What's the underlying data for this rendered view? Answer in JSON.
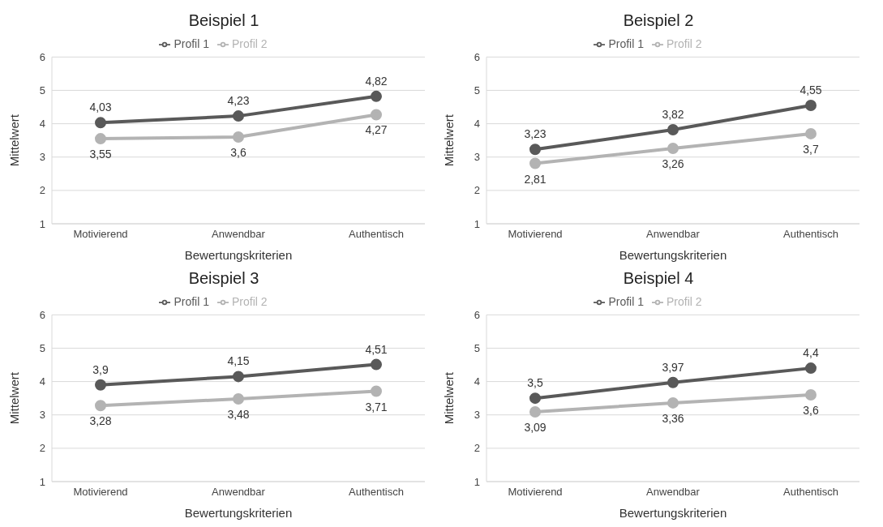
{
  "chart_data": [
    {
      "type": "line",
      "title": "Beispiel 1",
      "xlabel": "Bewertungskriterien",
      "ylabel": "Mittelwert",
      "categories": [
        "Motivierend",
        "Anwendbar",
        "Authentisch"
      ],
      "ylim": [
        1,
        6
      ],
      "yticks": [
        1,
        2,
        3,
        4,
        5,
        6
      ],
      "grid": "y",
      "legend": "top",
      "marker": "circle",
      "line_style": "solid",
      "series": [
        {
          "name": "Profil 1",
          "color": "#595959",
          "values": [
            4.03,
            4.23,
            4.82
          ],
          "value_labels": [
            "4,03",
            "4,23",
            "4,82"
          ]
        },
        {
          "name": "Profil 2",
          "color": "#b3b3b3",
          "values": [
            3.55,
            3.6,
            4.27
          ],
          "value_labels": [
            "3,55",
            "3,6",
            "4,27"
          ]
        }
      ]
    },
    {
      "type": "line",
      "title": "Beispiel 2",
      "xlabel": "Bewertungskriterien",
      "ylabel": "Mittelwert",
      "categories": [
        "Motivierend",
        "Anwendbar",
        "Authentisch"
      ],
      "ylim": [
        1,
        6
      ],
      "yticks": [
        1,
        2,
        3,
        4,
        5,
        6
      ],
      "grid": "y",
      "legend": "top",
      "marker": "circle",
      "line_style": "solid",
      "series": [
        {
          "name": "Profil 1",
          "color": "#595959",
          "values": [
            3.23,
            3.82,
            4.55
          ],
          "value_labels": [
            "3,23",
            "3,82",
            "4,55"
          ]
        },
        {
          "name": "Profil 2",
          "color": "#b3b3b3",
          "values": [
            2.81,
            3.26,
            3.7
          ],
          "value_labels": [
            "2,81",
            "3,26",
            "3,7"
          ]
        }
      ]
    },
    {
      "type": "line",
      "title": "Beispiel 3",
      "xlabel": "Bewertungskriterien",
      "ylabel": "Mittelwert",
      "categories": [
        "Motivierend",
        "Anwendbar",
        "Authentisch"
      ],
      "ylim": [
        1,
        6
      ],
      "yticks": [
        1,
        2,
        3,
        4,
        5,
        6
      ],
      "grid": "y",
      "legend": "top",
      "marker": "circle",
      "line_style": "solid",
      "series": [
        {
          "name": "Profil 1",
          "color": "#595959",
          "values": [
            3.9,
            4.15,
            4.51
          ],
          "value_labels": [
            "3,9",
            "4,15",
            "4,51"
          ]
        },
        {
          "name": "Profil 2",
          "color": "#b3b3b3",
          "values": [
            3.28,
            3.48,
            3.71
          ],
          "value_labels": [
            "3,28",
            "3,48",
            "3,71"
          ]
        }
      ]
    },
    {
      "type": "line",
      "title": "Beispiel 4",
      "xlabel": "Bewertungskriterien",
      "ylabel": "Mittelwert",
      "categories": [
        "Motivierend",
        "Anwendbar",
        "Authentisch"
      ],
      "ylim": [
        1,
        6
      ],
      "yticks": [
        1,
        2,
        3,
        4,
        5,
        6
      ],
      "grid": "y",
      "legend": "top",
      "marker": "circle",
      "line_style": "solid",
      "series": [
        {
          "name": "Profil 1",
          "color": "#595959",
          "values": [
            3.5,
            3.97,
            4.4
          ],
          "value_labels": [
            "3,5",
            "3,97",
            "4,4"
          ]
        },
        {
          "name": "Profil 2",
          "color": "#b3b3b3",
          "values": [
            3.09,
            3.36,
            3.6
          ],
          "value_labels": [
            "3,09",
            "3,36",
            "3,6"
          ]
        }
      ]
    }
  ]
}
